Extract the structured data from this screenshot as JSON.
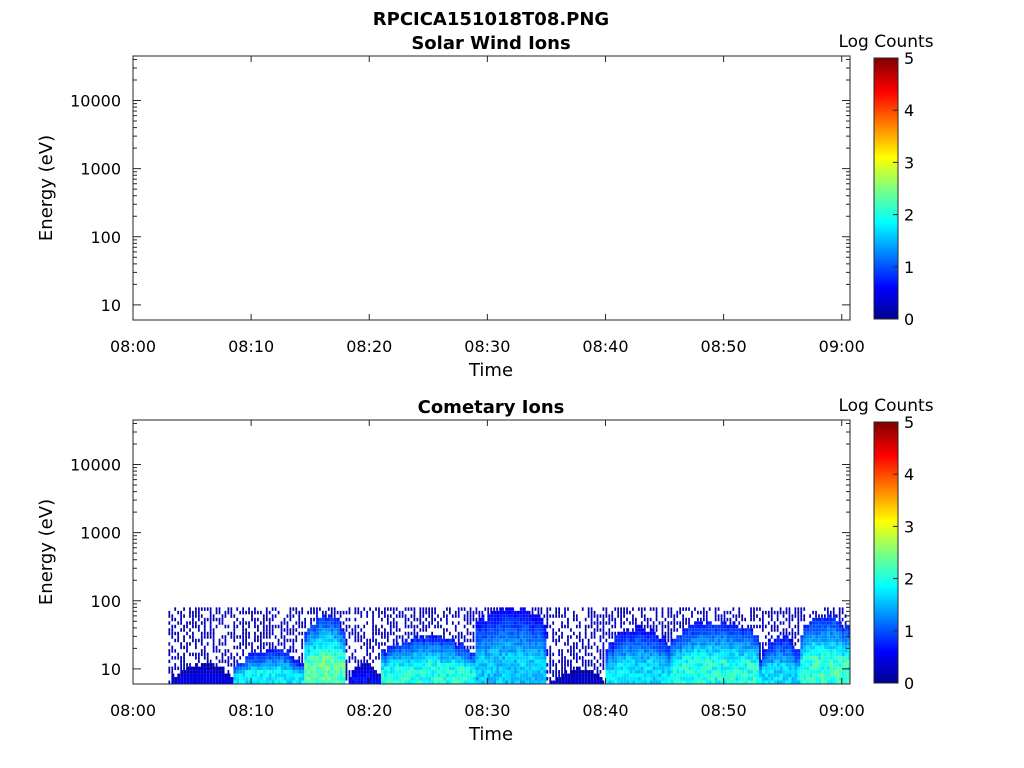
{
  "figure_title": "RPCICA151018T08.PNG",
  "chart_data": [
    {
      "type": "heatmap",
      "title": "Solar Wind Ions",
      "xlabel": "Time",
      "ylabel": "Energy (eV)",
      "x_ticks": [
        "08:00",
        "08:10",
        "08:20",
        "08:30",
        "08:40",
        "08:50",
        "09:00"
      ],
      "y_ticks": [
        "10",
        "100",
        "1000",
        "10000"
      ],
      "yscale": "log",
      "colorbar": {
        "label": "Log Counts",
        "ticks": [
          "0",
          "1",
          "2",
          "3",
          "4",
          "5"
        ],
        "range": [
          0,
          5
        ],
        "colormap": "jet"
      },
      "data_present": false,
      "segments": []
    },
    {
      "type": "heatmap",
      "title": "Cometary Ions",
      "xlabel": "Time",
      "ylabel": "Energy (eV)",
      "x_ticks": [
        "08:00",
        "08:10",
        "08:20",
        "08:30",
        "08:40",
        "08:50",
        "09:00"
      ],
      "y_ticks": [
        "10",
        "100",
        "1000",
        "10000"
      ],
      "yscale": "log",
      "colorbar": {
        "label": "Log Counts",
        "ticks": [
          "0",
          "1",
          "2",
          "3",
          "4",
          "5"
        ],
        "range": [
          0,
          5
        ],
        "colormap": "jet"
      },
      "data_present": true,
      "energy_range_eV": [
        6,
        80
      ],
      "segments": [
        {
          "t0": 3.0,
          "t1": 8.5,
          "peak_log_counts": 0.5,
          "cutoff_eV": 12
        },
        {
          "t0": 8.5,
          "t1": 14.5,
          "peak_log_counts": 1.8,
          "cutoff_eV": 20
        },
        {
          "t0": 14.5,
          "t1": 18.0,
          "peak_log_counts": 2.3,
          "cutoff_eV": 60
        },
        {
          "t0": 18.0,
          "t1": 21.0,
          "peak_log_counts": 0.7,
          "cutoff_eV": 12
        },
        {
          "t0": 21.0,
          "t1": 29.0,
          "peak_log_counts": 2.0,
          "cutoff_eV": 30
        },
        {
          "t0": 29.0,
          "t1": 35.0,
          "peak_log_counts": 1.6,
          "cutoff_eV": 80
        },
        {
          "t0": 35.0,
          "t1": 40.0,
          "peak_log_counts": 0.4,
          "cutoff_eV": 10
        },
        {
          "t0": 40.0,
          "t1": 45.5,
          "peak_log_counts": 1.7,
          "cutoff_eV": 40
        },
        {
          "t0": 45.5,
          "t1": 53.0,
          "peak_log_counts": 2.0,
          "cutoff_eV": 50
        },
        {
          "t0": 53.0,
          "t1": 56.5,
          "peak_log_counts": 1.7,
          "cutoff_eV": 30
        },
        {
          "t0": 56.5,
          "t1": 60.7,
          "peak_log_counts": 2.1,
          "cutoff_eV": 60
        }
      ]
    }
  ]
}
